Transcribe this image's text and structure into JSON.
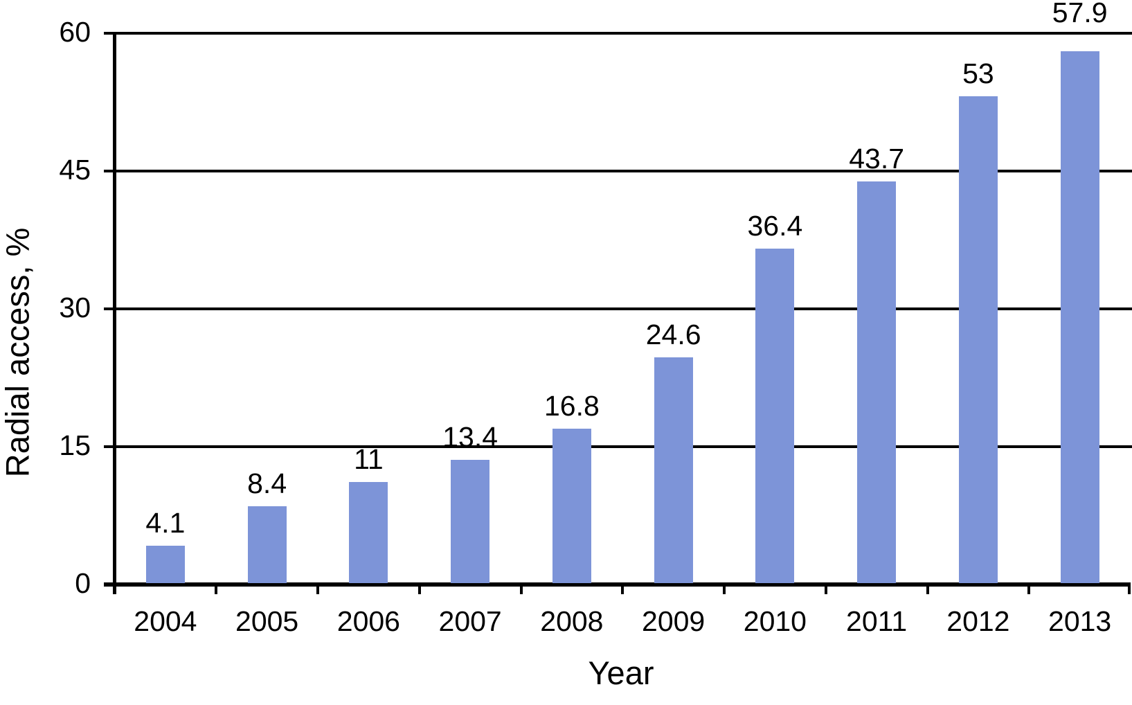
{
  "figure": {
    "background_color": "#ffffff",
    "axis_color": "#000000",
    "text_color": "#000000"
  },
  "chart_data": {
    "type": "bar",
    "title": "",
    "xlabel": "Year",
    "ylabel": "Radial access, %",
    "categories": [
      "2004",
      "2005",
      "2006",
      "2007",
      "2008",
      "2009",
      "2010",
      "2011",
      "2012",
      "2013"
    ],
    "values": [
      4.1,
      8.4,
      11,
      13.4,
      16.8,
      24.6,
      36.4,
      43.7,
      53,
      57.9
    ],
    "data_labels": [
      "4.1",
      "8.4",
      "11",
      "13.4",
      "16.8",
      "24.6",
      "36.4",
      "43.7",
      "53",
      "57.9"
    ],
    "ylim": [
      0,
      60
    ],
    "yticks": [
      0,
      15,
      30,
      45,
      60
    ],
    "ytick_labels": [
      "0",
      "15",
      "30",
      "45",
      "60"
    ],
    "grid": "horizontal",
    "legend": "none",
    "bar_color": "#7D94D8"
  }
}
